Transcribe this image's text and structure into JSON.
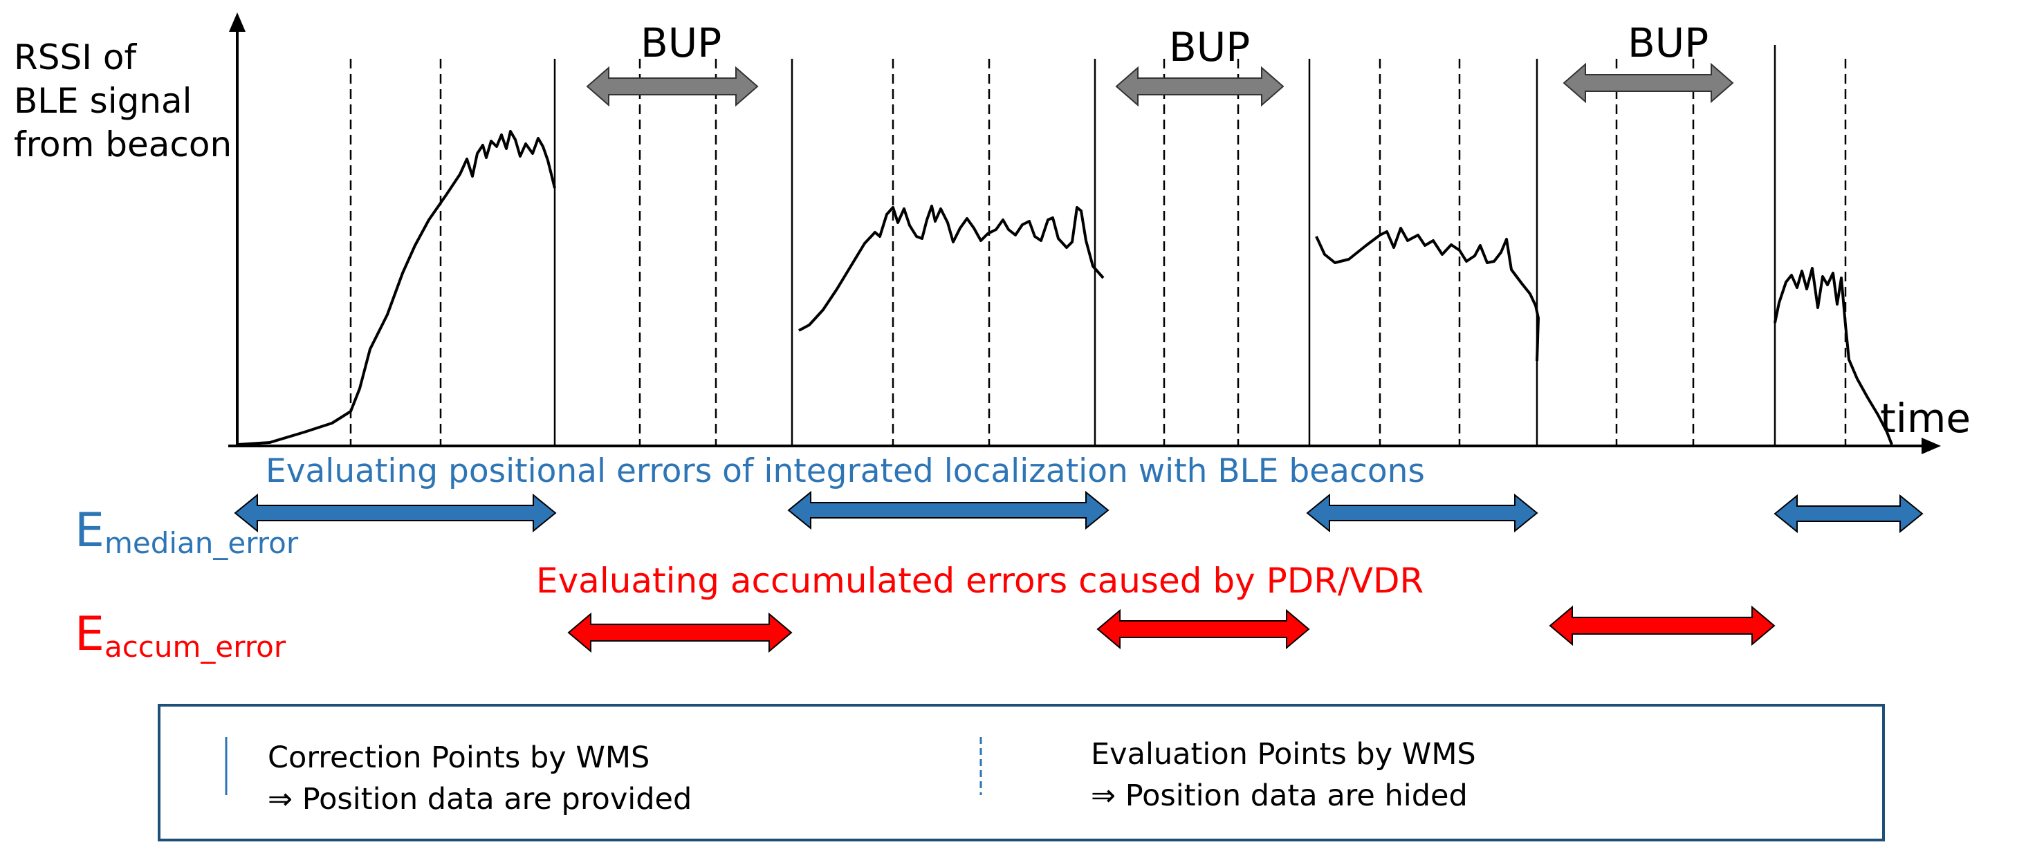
{
  "y_axis_label": [
    "RSSI of",
    "BLE signal",
    "from beacon"
  ],
  "x_axis_label": "time",
  "bup_labels": [
    "BUP",
    "BUP",
    "BUP"
  ],
  "positional_eval_text": "Evaluating positional errors of integrated localization with BLE beacons",
  "accumulated_eval_text": "Evaluating accumulated errors caused by PDR/VDR",
  "median_error_symbol": {
    "base": "E",
    "subscript": "median_error"
  },
  "accum_error_symbol": {
    "base": "E",
    "subscript": "accum_error"
  },
  "legend": {
    "correction_title": "Correction Points by WMS",
    "correction_desc": "⇒ Position data are provided",
    "evaluation_title": "Evaluation Points by WMS",
    "evaluation_desc": "⇒ Position data are hided"
  },
  "colors": {
    "blue_text": "#2E75B6",
    "red_text": "#FF0000",
    "blue_arrow": "#2E75B6",
    "red_arrow": "#FF0000",
    "gray_arrow": "#7F7F7F",
    "legend_border": "#1F4E79"
  }
}
